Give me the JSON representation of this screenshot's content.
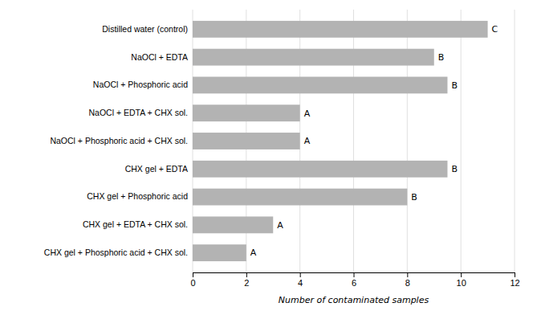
{
  "chart_data": {
    "type": "bar",
    "orientation": "horizontal",
    "categories": [
      "CHX gel + Phosphoric acid + CHX sol.",
      "CHX gel + EDTA + CHX sol.",
      "CHX gel + Phosphoric acid",
      "CHX gel + EDTA",
      "NaOCl + Phosphoric acid + CHX sol.",
      "NaOCl + EDTA + CHX sol.",
      "NaOCl + Phosphoric acid",
      "NaOCl + EDTA",
      "Distilled water (control)"
    ],
    "values": [
      2,
      3,
      8,
      9.5,
      4,
      4,
      9.5,
      9,
      11
    ],
    "annotations": [
      "A",
      "A",
      "B",
      "B",
      "A",
      "A",
      "B",
      "B",
      "C"
    ],
    "color": "#b3b3b3",
    "xlabel": "Number of contaminated samples",
    "xlim": [
      0,
      12
    ],
    "xticks": [
      0,
      2,
      4,
      6,
      8,
      10,
      12
    ],
    "grid": true
  }
}
